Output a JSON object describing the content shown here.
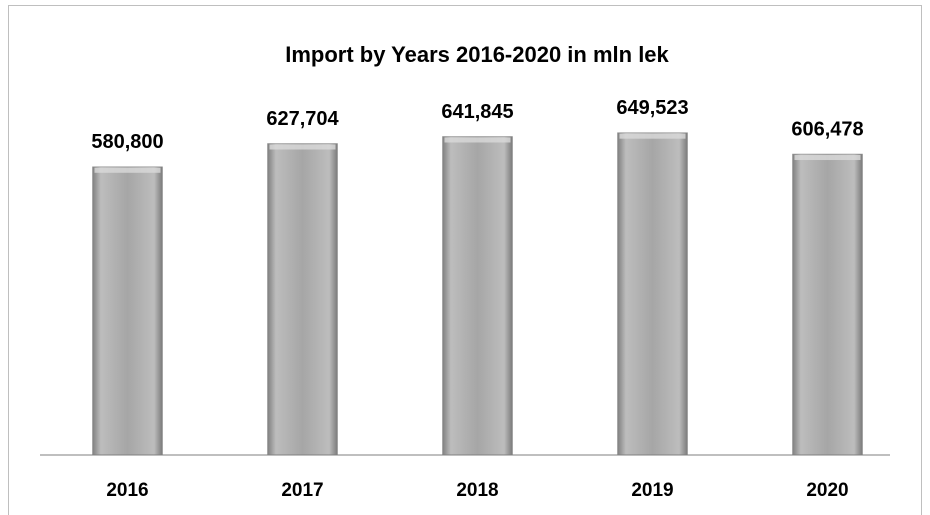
{
  "chart_data": {
    "type": "bar",
    "title": "Import  by Years   2016-2020 in  mln lek",
    "categories": [
      "2016",
      "2017",
      "2018",
      "2019",
      "2020"
    ],
    "values": [
      580800,
      627704,
      641845,
      649523,
      606478
    ],
    "value_labels": [
      "580,800",
      "627,704",
      "641,845",
      "649,523",
      "606,478"
    ],
    "color": "#a6a6a6",
    "ylim": [
      0,
      800000
    ]
  }
}
